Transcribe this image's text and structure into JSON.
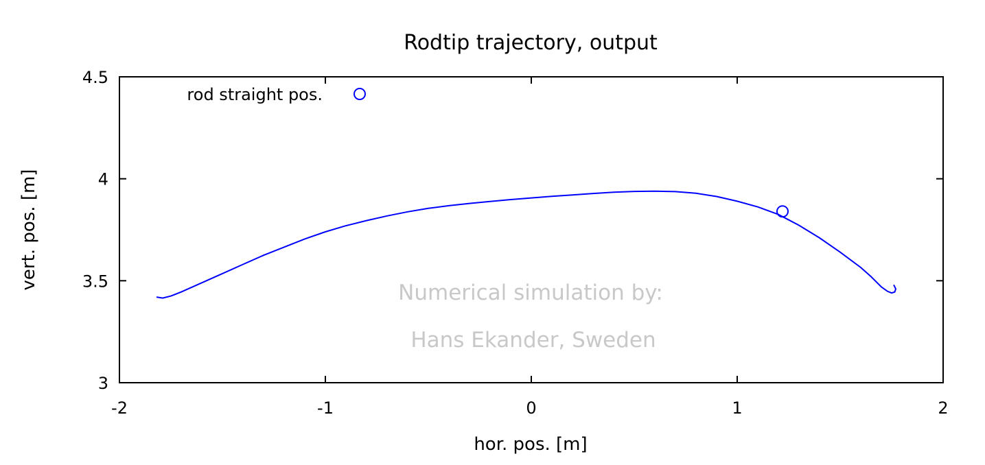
{
  "chart_data": {
    "type": "line",
    "title": "Rodtip trajectory, output",
    "xlabel": "hor. pos. [m]",
    "ylabel": "vert. pos. [m]",
    "xlim": [
      -2,
      2
    ],
    "ylim": [
      3,
      4.5
    ],
    "x_ticks": [
      -2,
      -1,
      0,
      1,
      2
    ],
    "x_tick_labels": [
      "-2",
      "-1",
      "0",
      "1",
      "2"
    ],
    "y_ticks": [
      3,
      3.5,
      4,
      4.5
    ],
    "y_tick_labels": [
      "3",
      "3.5",
      "4",
      "4.5"
    ],
    "grid": false,
    "legend_position": "top-left",
    "series": [
      {
        "name": "",
        "style": "line",
        "color": "#0000ff",
        "x": [
          -1.82,
          -1.79,
          -1.75,
          -1.7,
          -1.6,
          -1.5,
          -1.4,
          -1.3,
          -1.2,
          -1.1,
          -1.0,
          -0.9,
          -0.8,
          -0.7,
          -0.6,
          -0.5,
          -0.4,
          -0.3,
          -0.2,
          -0.1,
          0.0,
          0.1,
          0.2,
          0.3,
          0.4,
          0.5,
          0.6,
          0.7,
          0.8,
          0.9,
          1.0,
          1.1,
          1.2,
          1.3,
          1.4,
          1.5,
          1.6,
          1.65,
          1.7,
          1.73,
          1.75,
          1.765,
          1.77,
          1.76
        ],
        "y": [
          3.42,
          3.415,
          3.425,
          3.445,
          3.49,
          3.535,
          3.58,
          3.625,
          3.665,
          3.705,
          3.74,
          3.77,
          3.795,
          3.818,
          3.838,
          3.855,
          3.868,
          3.879,
          3.889,
          3.898,
          3.906,
          3.914,
          3.921,
          3.928,
          3.934,
          3.938,
          3.939,
          3.937,
          3.929,
          3.913,
          3.89,
          3.862,
          3.825,
          3.772,
          3.71,
          3.64,
          3.565,
          3.52,
          3.47,
          3.448,
          3.44,
          3.445,
          3.46,
          3.48
        ]
      },
      {
        "name": "rod straight pos.",
        "style": "points",
        "marker": "open-circle",
        "color": "#0000ff",
        "x": [
          1.22
        ],
        "y": [
          3.84
        ]
      }
    ],
    "annotations": [
      "Numerical simulation by:",
      "Hans Ekander, Sweden"
    ]
  }
}
